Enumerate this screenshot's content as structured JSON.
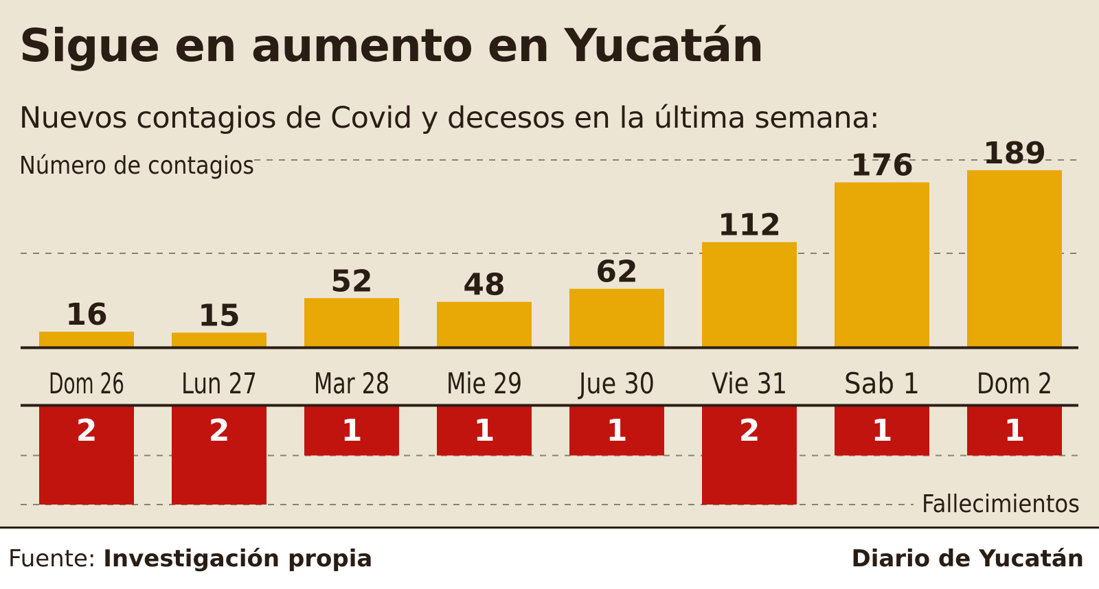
{
  "title": "Sigue en aumento en Yucatán",
  "subtitle": "Nuevos contagios de Covid y decesos en la última semana:",
  "footer": {
    "source_prefix": "Fuente:",
    "source_name": "Investigación propia",
    "brand": "Diario de Yucatán"
  },
  "colors": {
    "background": "#ede5d4",
    "cases_bar": "#e8a806",
    "deaths_bar": "#c1140f",
    "text": "#2a1d14",
    "gridline": "#8a8070"
  },
  "chart_data": {
    "type": "bar",
    "categories": [
      "Dom 26",
      "Lun 27",
      "Mar 28",
      "Mie 29",
      "Jue 30",
      "Vie 31",
      "Sab 1",
      "Dom 2"
    ],
    "series": [
      {
        "name": "Número de contagios",
        "values": [
          16,
          15,
          52,
          48,
          62,
          112,
          176,
          189
        ]
      },
      {
        "name": "Fallecimientos",
        "values": [
          2,
          2,
          1,
          1,
          1,
          2,
          1,
          1
        ]
      }
    ],
    "ylabel_cases": "Número de contagios",
    "ylabel_deaths": "Fallecimientos",
    "ylim_cases": [
      0,
      200
    ],
    "ylim_deaths": [
      0,
      2
    ],
    "grid": true,
    "data_labels": true
  }
}
